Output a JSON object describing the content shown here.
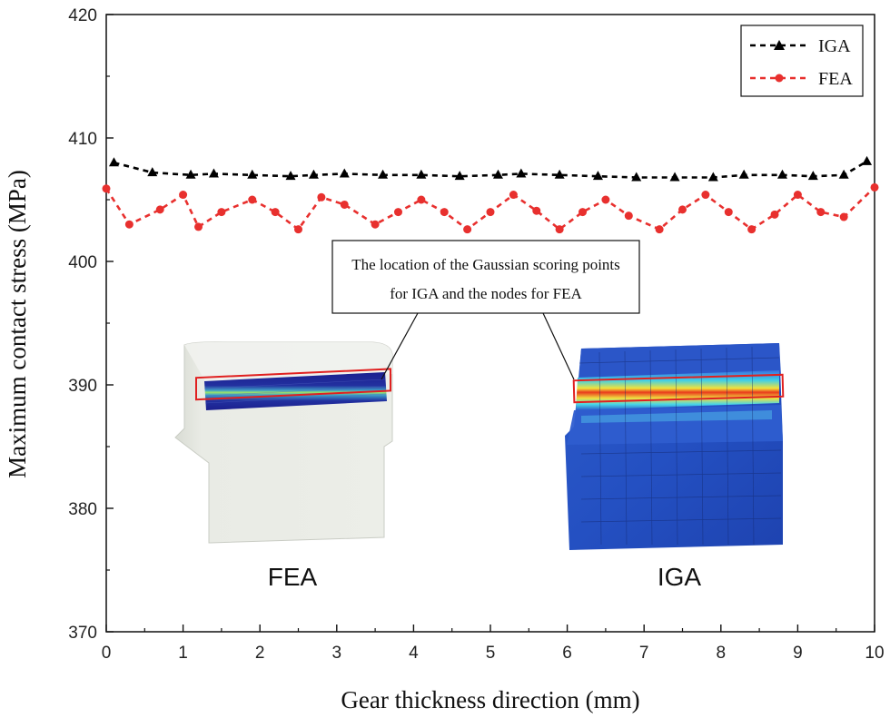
{
  "chart_data": {
    "type": "line",
    "xlabel": "Gear thickness direction (mm)",
    "ylabel": "Maximum contact stress (MPa)",
    "xlim": [
      0,
      10
    ],
    "ylim": [
      370,
      420
    ],
    "xticks": [
      "0",
      "1",
      "2",
      "3",
      "4",
      "5",
      "6",
      "7",
      "8",
      "9",
      "10"
    ],
    "yticks": [
      "370",
      "380",
      "390",
      "400",
      "410",
      "420"
    ],
    "grid": false,
    "legend_position": "top-right",
    "series": [
      {
        "name": "IGA",
        "color": "#000000",
        "marker": "triangle",
        "x": [
          0.1,
          0.6,
          1.1,
          1.4,
          1.9,
          2.4,
          2.7,
          3.1,
          3.6,
          4.1,
          4.6,
          5.1,
          5.4,
          5.9,
          6.4,
          6.9,
          7.4,
          7.9,
          8.3,
          8.8,
          9.2,
          9.6,
          9.9
        ],
        "y": [
          408.0,
          407.2,
          407.0,
          407.1,
          407.0,
          406.9,
          407.0,
          407.1,
          407.0,
          407.0,
          406.9,
          407.0,
          407.1,
          407.0,
          406.9,
          406.8,
          406.8,
          406.8,
          407.0,
          407.0,
          406.9,
          407.0,
          408.1
        ]
      },
      {
        "name": "FEA",
        "color": "#e8302e",
        "marker": "circle",
        "x": [
          0.0,
          0.3,
          0.7,
          1.0,
          1.2,
          1.5,
          1.9,
          2.2,
          2.5,
          2.8,
          3.1,
          3.5,
          3.8,
          4.1,
          4.4,
          4.7,
          5.0,
          5.3,
          5.6,
          5.9,
          6.2,
          6.5,
          6.8,
          7.2,
          7.5,
          7.8,
          8.1,
          8.4,
          8.7,
          9.0,
          9.3,
          9.6,
          10.0
        ],
        "y": [
          405.9,
          403.0,
          404.2,
          405.4,
          402.8,
          404.0,
          405.0,
          404.0,
          402.6,
          405.2,
          404.6,
          403.0,
          404.0,
          405.0,
          404.0,
          402.6,
          404.0,
          405.4,
          404.1,
          402.6,
          404.0,
          405.0,
          403.7,
          402.6,
          404.2,
          405.4,
          404.0,
          402.6,
          403.8,
          405.4,
          404.0,
          403.6,
          406.0
        ]
      }
    ],
    "annotations": {
      "callout_line1": "The location of the Gaussian scoring points",
      "callout_line2": "for IGA and the nodes for FEA",
      "inset_left_label": "FEA",
      "inset_right_label": "IGA"
    }
  }
}
